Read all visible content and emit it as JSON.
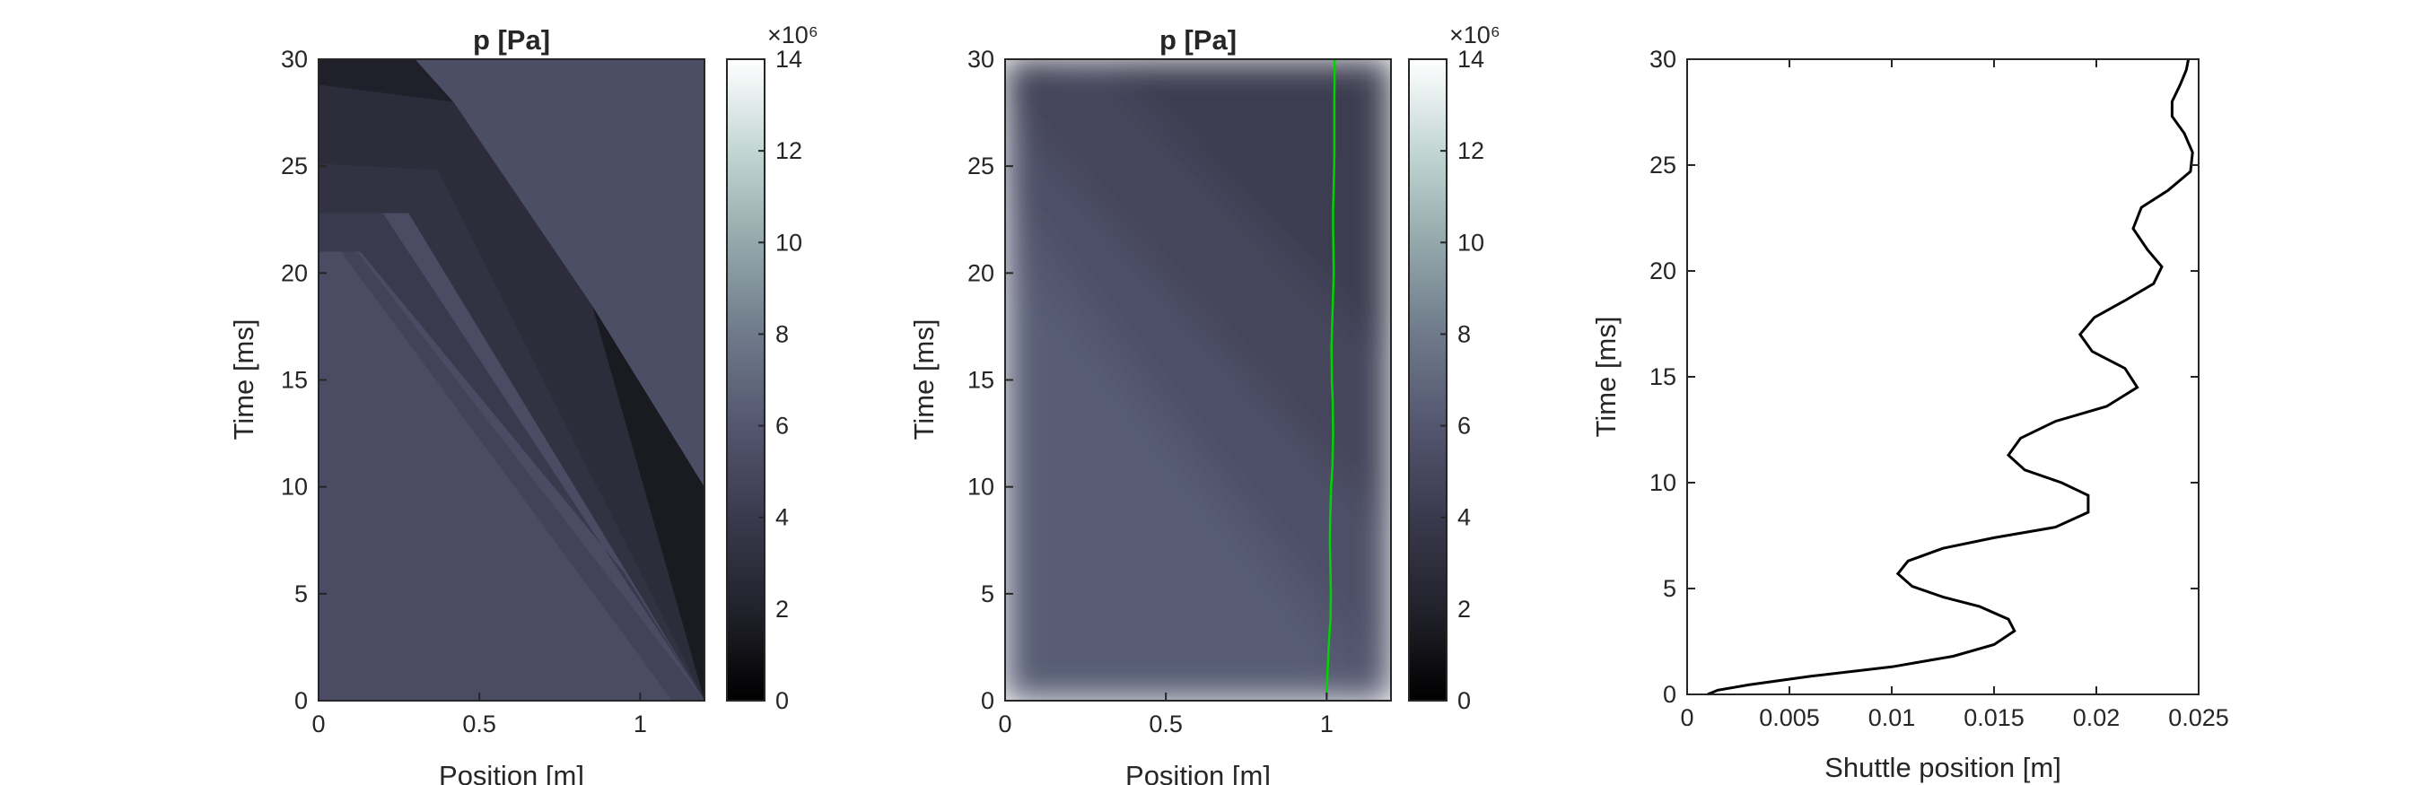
{
  "colors": {
    "background": "#ffffff",
    "axes": "#262626",
    "shuttle_marker": "#00d400",
    "shuttle_curve": "#000000",
    "colormap": [
      "#000000",
      "#22222c",
      "#3a3a4e",
      "#545670",
      "#6e7a8a",
      "#94a8ab",
      "#c2d6d4",
      "#ffffff"
    ]
  },
  "chart_data": [
    {
      "type": "heatmap",
      "title": "p [Pa]",
      "xlabel": "Position [m]",
      "ylabel": "Time [ms]",
      "xlim": [
        0,
        1.2
      ],
      "ylim": [
        0,
        30
      ],
      "xticks": [
        "0",
        "0.5",
        "1"
      ],
      "yticks": [
        "0",
        "5",
        "10",
        "15",
        "20",
        "25",
        "30"
      ],
      "shading": "banded",
      "colorbar": {
        "label": "×10⁶",
        "range": [
          0,
          14
        ],
        "ticks": [
          "0",
          "2",
          "4",
          "6",
          "8",
          "10",
          "12",
          "14"
        ]
      },
      "regions": [
        {
          "p_MPa": 5.3,
          "points": [
            [
              0,
              0
            ],
            [
              1.2,
              0
            ],
            [
              1.2,
              30
            ],
            [
              0,
              30
            ]
          ]
        },
        {
          "p_MPa": 4.6,
          "points": [
            [
              0.07,
              21
            ],
            [
              0.12,
              21
            ],
            [
              1.2,
              0
            ],
            [
              1.1,
              0
            ]
          ]
        },
        {
          "p_MPa": 4.0,
          "points": [
            [
              0,
              22.8
            ],
            [
              0.2,
              22.8
            ],
            [
              1.2,
              0
            ],
            [
              0.95,
              6
            ],
            [
              0.13,
              21
            ],
            [
              0,
              21
            ]
          ]
        },
        {
          "p_MPa": 3.3,
          "points": [
            [
              0,
              25.1
            ],
            [
              0.37,
              24.8
            ],
            [
              1.2,
              0
            ],
            [
              0.28,
              22.8
            ],
            [
              0,
              22.8
            ]
          ]
        },
        {
          "p_MPa": 2.8,
          "points": [
            [
              0,
              28.8
            ],
            [
              0.42,
              28
            ],
            [
              0.85,
              18.5
            ],
            [
              1.2,
              0
            ],
            [
              0.37,
              24.8
            ],
            [
              0,
              25.1
            ]
          ]
        },
        {
          "p_MPa": 1.5,
          "points": [
            [
              0.85,
              18.5
            ],
            [
              1.2,
              10
            ],
            [
              1.2,
              0
            ]
          ]
        },
        {
          "p_MPa": 1.9,
          "points": [
            [
              0,
              30
            ],
            [
              0.3,
              30
            ],
            [
              0.42,
              28
            ],
            [
              0,
              28.8
            ]
          ]
        },
        {
          "p_MPa": 5.4,
          "points": [
            [
              0.3,
              30
            ],
            [
              1.2,
              30
            ],
            [
              1.2,
              10
            ],
            [
              0.85,
              18.5
            ],
            [
              0.42,
              28
            ]
          ]
        }
      ]
    },
    {
      "type": "heatmap",
      "title": "p [Pa]",
      "xlabel": "Position [m]",
      "ylabel": "Time [ms]",
      "xlim": [
        0,
        1.2
      ],
      "ylim": [
        0,
        30
      ],
      "xticks": [
        "0",
        "0.5",
        "1"
      ],
      "yticks": [
        "0",
        "5",
        "10",
        "15",
        "20",
        "25",
        "30"
      ],
      "shading": "smooth",
      "colorbar": {
        "label": "×10⁶",
        "range": [
          0,
          14
        ],
        "ticks": [
          "0",
          "2",
          "4",
          "6",
          "8",
          "10",
          "12",
          "14"
        ]
      },
      "regions": [
        {
          "p_MPa": 6.4,
          "points": [
            [
              0,
              0
            ],
            [
              1.2,
              0
            ],
            [
              1.2,
              30
            ],
            [
              0,
              30
            ]
          ]
        },
        {
          "p_MPa": 6.0,
          "points": [
            [
              0,
              21
            ],
            [
              0,
              30
            ],
            [
              1.2,
              30
            ],
            [
              1.2,
              0
            ],
            [
              1.1,
              0
            ]
          ]
        },
        {
          "p_MPa": 5.5,
          "points": [
            [
              0,
              24
            ],
            [
              0,
              30
            ],
            [
              1.2,
              30
            ],
            [
              1.2,
              1
            ],
            [
              0.6,
              12
            ]
          ]
        },
        {
          "p_MPa": 4.8,
          "points": [
            [
              0,
              28
            ],
            [
              0,
              30
            ],
            [
              1.2,
              30
            ],
            [
              1.2,
              8
            ]
          ]
        },
        {
          "p_MPa": 4.2,
          "points": [
            [
              0.02,
              30
            ],
            [
              1.2,
              30
            ],
            [
              1.2,
              16
            ],
            [
              0.3,
              30
            ]
          ]
        },
        {
          "p_MPa": 3.6,
          "points": [
            [
              0,
              29
            ],
            [
              0,
              30
            ],
            [
              0.25,
              30
            ]
          ]
        }
      ],
      "overlay": {
        "name": "shuttle",
        "x": [
          1.0,
          1.003,
          1.008,
          1.012,
          1.013,
          1.012,
          1.01,
          1.011,
          1.014,
          1.018,
          1.02,
          1.019,
          1.016,
          1.015,
          1.017,
          1.02,
          1.022,
          1.021,
          1.02,
          1.02,
          1.022,
          1.024,
          1.024,
          1.024,
          1.025
        ],
        "y": [
          0.2,
          1.5,
          3,
          3.8,
          5,
          6,
          7.5,
          8.5,
          10,
          11,
          12.5,
          14,
          15,
          16.5,
          17.5,
          19,
          20,
          21,
          22,
          23,
          24,
          25.5,
          26.5,
          28,
          30
        ]
      }
    },
    {
      "type": "line",
      "xlabel": "Shuttle position [m]",
      "ylabel": "Time [ms]",
      "xlim": [
        0,
        0.025
      ],
      "ylim": [
        0,
        30
      ],
      "xticks": [
        "0",
        "0.005",
        "0.01",
        "0.015",
        "0.02",
        "0.025"
      ],
      "yticks": [
        "0",
        "5",
        "10",
        "15",
        "20",
        "25",
        "30"
      ],
      "series": [
        {
          "points": [
            [
              0.001,
              0
            ],
            [
              0.0015,
              0.2
            ],
            [
              0.003,
              0.45
            ],
            [
              0.006,
              0.85
            ],
            [
              0.01,
              1.3
            ],
            [
              0.013,
              1.8
            ],
            [
              0.015,
              2.35
            ],
            [
              0.016,
              3.0
            ],
            [
              0.0157,
              3.55
            ],
            [
              0.0143,
              4.15
            ],
            [
              0.0125,
              4.6
            ],
            [
              0.011,
              5.1
            ],
            [
              0.0103,
              5.7
            ],
            [
              0.0108,
              6.3
            ],
            [
              0.0125,
              6.9
            ],
            [
              0.015,
              7.4
            ],
            [
              0.018,
              7.9
            ],
            [
              0.0196,
              8.6
            ],
            [
              0.0196,
              9.4
            ],
            [
              0.0183,
              10.0
            ],
            [
              0.0165,
              10.6
            ],
            [
              0.0157,
              11.3
            ],
            [
              0.0163,
              12.1
            ],
            [
              0.018,
              12.9
            ],
            [
              0.0205,
              13.6
            ],
            [
              0.022,
              14.5
            ],
            [
              0.0214,
              15.4
            ],
            [
              0.0198,
              16.2
            ],
            [
              0.0192,
              17.0
            ],
            [
              0.0199,
              17.8
            ],
            [
              0.0214,
              18.6
            ],
            [
              0.0228,
              19.4
            ],
            [
              0.0232,
              20.2
            ],
            [
              0.0225,
              21.0
            ],
            [
              0.0218,
              22.0
            ],
            [
              0.0222,
              23.0
            ],
            [
              0.0235,
              23.8
            ],
            [
              0.0246,
              24.7
            ],
            [
              0.0247,
              25.6
            ],
            [
              0.0243,
              26.5
            ],
            [
              0.0237,
              27.3
            ],
            [
              0.0237,
              28.0
            ],
            [
              0.0241,
              28.8
            ],
            [
              0.0244,
              29.5
            ],
            [
              0.0245,
              30.0
            ]
          ]
        }
      ]
    }
  ]
}
